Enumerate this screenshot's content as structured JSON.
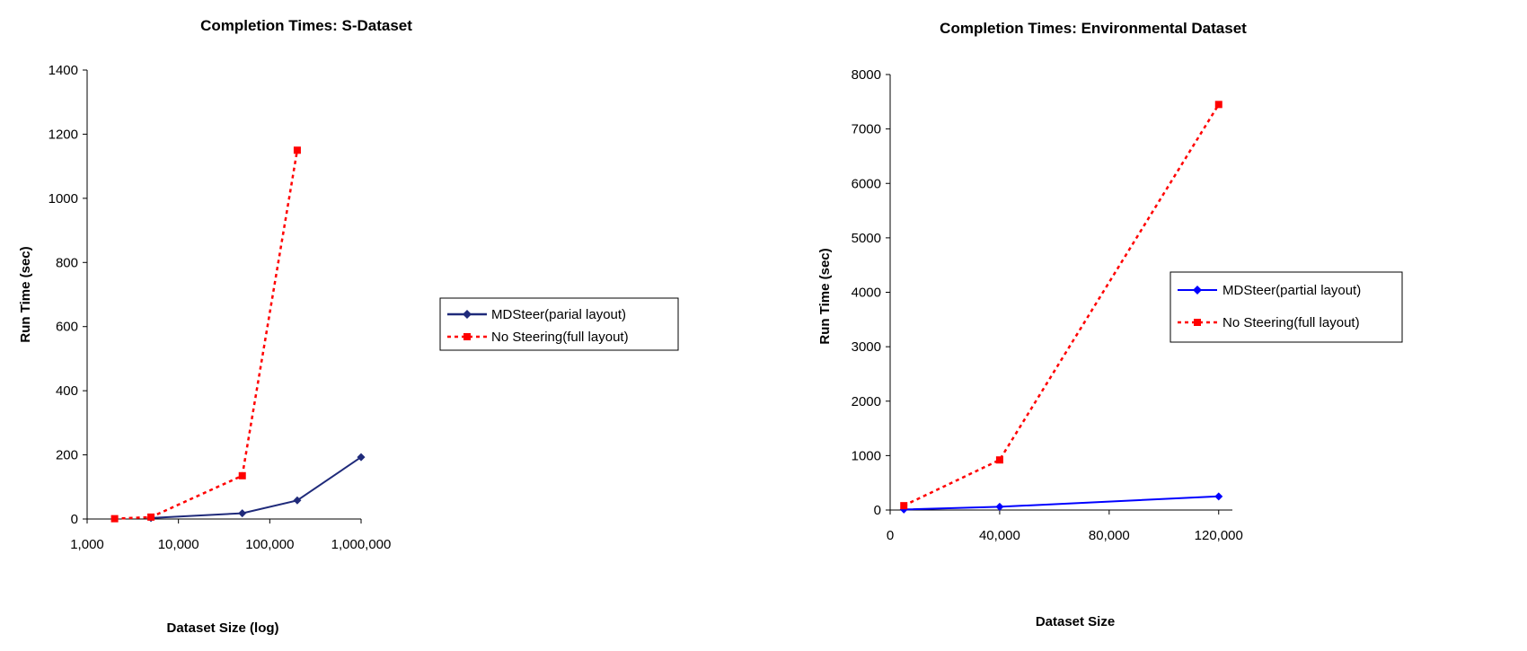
{
  "chart_data": [
    {
      "type": "line",
      "title": "Completion Times: S-Dataset",
      "xlabel": "Dataset Size (log)",
      "ylabel": "Run Time (sec)",
      "x_scale": "log",
      "xlim": [
        1000,
        1000000
      ],
      "ylim": [
        0,
        1400
      ],
      "x_ticks": [
        1000,
        10000,
        100000,
        1000000
      ],
      "x_tick_labels": [
        "1,000",
        "10,000",
        "100,000",
        "1,000,000"
      ],
      "y_ticks": [
        0,
        200,
        400,
        600,
        800,
        1000,
        1200,
        1400
      ],
      "y_tick_labels": [
        "0",
        "200",
        "400",
        "600",
        "800",
        "1000",
        "1200",
        "1400"
      ],
      "grid": false,
      "legend_position": "right",
      "series": [
        {
          "name": "MDSteer(parial layout)",
          "color": "#1f2a7a",
          "style": "solid",
          "marker": "diamond",
          "points": [
            {
              "x": 5000,
              "y": 3
            },
            {
              "x": 50000,
              "y": 18
            },
            {
              "x": 200000,
              "y": 58
            },
            {
              "x": 1000000,
              "y": 193
            }
          ]
        },
        {
          "name": "No Steering(full layout)",
          "color": "#ff0000",
          "style": "dashed",
          "marker": "square",
          "points": [
            {
              "x": 2000,
              "y": 1
            },
            {
              "x": 5000,
              "y": 6
            },
            {
              "x": 50000,
              "y": 135
            },
            {
              "x": 200000,
              "y": 1150
            }
          ]
        }
      ]
    },
    {
      "type": "line",
      "title": "Completion Times: Environmental Dataset",
      "xlabel": "Dataset Size",
      "ylabel": "Run Time (sec)",
      "x_scale": "linear",
      "xlim": [
        0,
        125000
      ],
      "ylim": [
        0,
        8000
      ],
      "x_ticks": [
        0,
        40000,
        80000,
        120000
      ],
      "x_tick_labels": [
        "0",
        "40,000",
        "80,000",
        "120,000"
      ],
      "y_ticks": [
        0,
        1000,
        2000,
        3000,
        4000,
        5000,
        6000,
        7000,
        8000
      ],
      "y_tick_labels": [
        "0",
        "1000",
        "2000",
        "3000",
        "4000",
        "5000",
        "6000",
        "7000",
        "8000"
      ],
      "grid": false,
      "legend_position": "right",
      "series": [
        {
          "name": "MDSteer(partial layout)",
          "color": "#0000ff",
          "style": "solid",
          "marker": "diamond",
          "points": [
            {
              "x": 5000,
              "y": 10
            },
            {
              "x": 40000,
              "y": 60
            },
            {
              "x": 120000,
              "y": 250
            }
          ]
        },
        {
          "name": "No Steering(full layout)",
          "color": "#ff0000",
          "style": "dashed",
          "marker": "square",
          "points": [
            {
              "x": 5000,
              "y": 80
            },
            {
              "x": 40000,
              "y": 920
            },
            {
              "x": 120000,
              "y": 7450
            }
          ]
        }
      ]
    }
  ]
}
